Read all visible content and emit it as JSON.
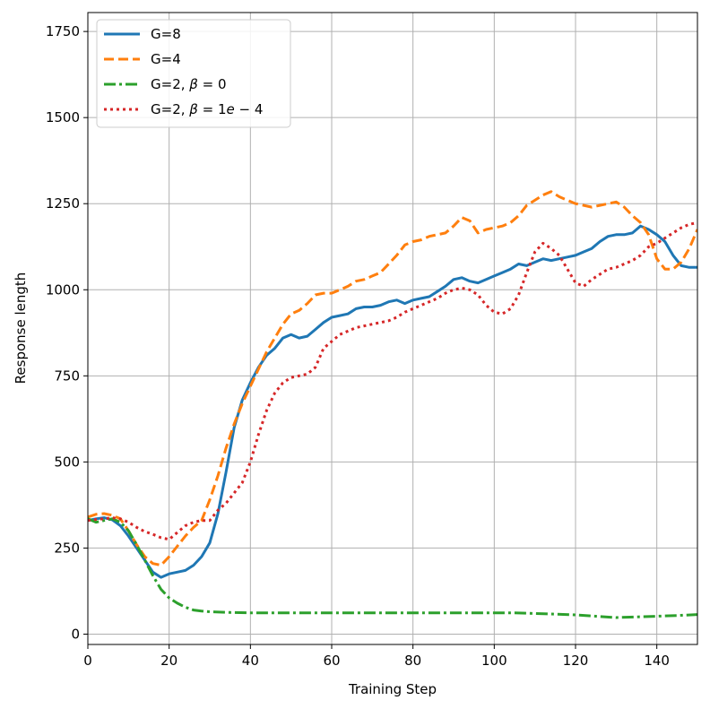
{
  "chart_data": {
    "type": "line",
    "xlabel": "Training Step",
    "ylabel": "Response length",
    "xlim": [
      0,
      150
    ],
    "ylim": [
      -30,
      1805
    ],
    "xticks": [
      0,
      20,
      40,
      60,
      80,
      100,
      120,
      140
    ],
    "yticks": [
      0,
      250,
      500,
      750,
      1000,
      1250,
      1500,
      1750
    ],
    "grid": true,
    "legend_position": "top-left",
    "series": [
      {
        "name": "G=8",
        "legend_parts": [
          "G=8"
        ],
        "color": "#1f77b4",
        "style": "solid",
        "x": [
          0,
          2,
          4,
          6,
          8,
          10,
          12,
          14,
          16,
          18,
          20,
          22,
          24,
          26,
          28,
          30,
          32,
          34,
          36,
          38,
          40,
          42,
          44,
          46,
          48,
          50,
          52,
          54,
          56,
          58,
          60,
          62,
          64,
          66,
          68,
          70,
          72,
          74,
          76,
          78,
          80,
          82,
          84,
          86,
          88,
          90,
          92,
          94,
          96,
          98,
          100,
          102,
          104,
          106,
          108,
          110,
          112,
          114,
          116,
          118,
          120,
          122,
          124,
          126,
          128,
          130,
          132,
          134,
          136,
          138,
          140,
          142,
          144,
          146,
          148,
          150
        ],
        "y": [
          330,
          335,
          338,
          332,
          315,
          285,
          250,
          215,
          180,
          165,
          175,
          180,
          185,
          200,
          225,
          265,
          350,
          470,
          600,
          680,
          730,
          775,
          810,
          830,
          860,
          870,
          860,
          865,
          885,
          905,
          920,
          925,
          930,
          945,
          950,
          950,
          955,
          965,
          970,
          960,
          970,
          975,
          980,
          995,
          1010,
          1030,
          1035,
          1025,
          1020,
          1030,
          1040,
          1050,
          1060,
          1075,
          1070,
          1080,
          1090,
          1085,
          1090,
          1095,
          1100,
          1110,
          1120,
          1140,
          1155,
          1160,
          1160,
          1165,
          1185,
          1175,
          1160,
          1140,
          1100,
          1070,
          1065,
          1065
        ]
      },
      {
        "name": "G=4",
        "legend_parts": [
          "G=4"
        ],
        "color": "#ff7f0e",
        "style": "dashed",
        "x": [
          0,
          2,
          4,
          6,
          8,
          10,
          12,
          14,
          16,
          18,
          20,
          22,
          24,
          26,
          28,
          30,
          32,
          34,
          36,
          38,
          40,
          42,
          44,
          46,
          48,
          50,
          52,
          54,
          56,
          58,
          60,
          62,
          64,
          66,
          68,
          70,
          72,
          74,
          76,
          78,
          80,
          82,
          84,
          86,
          88,
          90,
          92,
          94,
          96,
          98,
          100,
          102,
          104,
          106,
          108,
          110,
          112,
          114,
          116,
          118,
          120,
          122,
          124,
          126,
          128,
          130,
          132,
          134,
          136,
          138,
          140,
          142,
          144,
          146,
          148,
          150
        ],
        "y": [
          340,
          348,
          350,
          345,
          335,
          300,
          260,
          225,
          205,
          200,
          225,
          255,
          285,
          310,
          330,
          390,
          460,
          540,
          610,
          670,
          720,
          770,
          820,
          860,
          900,
          930,
          940,
          960,
          985,
          990,
          990,
          1000,
          1010,
          1025,
          1030,
          1040,
          1050,
          1075,
          1100,
          1130,
          1140,
          1145,
          1155,
          1160,
          1165,
          1185,
          1210,
          1200,
          1165,
          1175,
          1180,
          1185,
          1195,
          1215,
          1245,
          1260,
          1275,
          1285,
          1270,
          1260,
          1250,
          1245,
          1240,
          1245,
          1250,
          1255,
          1240,
          1215,
          1195,
          1160,
          1090,
          1060,
          1060,
          1080,
          1120,
          1175
        ]
      },
      {
        "name": "G=2, β = 0",
        "legend_parts": [
          "G=2, ",
          "β",
          " = 0"
        ],
        "color": "#2ca02c",
        "style": "dashdot",
        "x": [
          0,
          2,
          4,
          6,
          8,
          10,
          12,
          14,
          16,
          18,
          20,
          22,
          24,
          26,
          28,
          30,
          35,
          40,
          45,
          50,
          55,
          60,
          65,
          70,
          75,
          80,
          85,
          90,
          95,
          100,
          105,
          110,
          115,
          120,
          125,
          130,
          135,
          140,
          145,
          150
        ],
        "y": [
          335,
          325,
          330,
          335,
          325,
          300,
          260,
          215,
          170,
          130,
          105,
          90,
          78,
          70,
          67,
          65,
          63,
          62,
          62,
          62,
          62,
          62,
          62,
          62,
          62,
          62,
          62,
          62,
          62,
          62,
          62,
          60,
          58,
          56,
          52,
          48,
          50,
          52,
          54,
          57
        ]
      },
      {
        "name": "G=2, β = 1e − 4",
        "legend_parts": [
          "G=2, ",
          "β",
          " = 1",
          "e",
          " − 4"
        ],
        "color": "#d62728",
        "style": "dotted",
        "x": [
          0,
          2,
          4,
          6,
          8,
          10,
          12,
          14,
          16,
          18,
          20,
          22,
          24,
          26,
          28,
          30,
          32,
          34,
          36,
          38,
          40,
          42,
          44,
          46,
          48,
          50,
          52,
          54,
          56,
          58,
          60,
          62,
          64,
          66,
          68,
          70,
          72,
          74,
          76,
          78,
          80,
          82,
          84,
          86,
          88,
          90,
          92,
          94,
          96,
          98,
          100,
          102,
          104,
          106,
          108,
          110,
          112,
          114,
          116,
          118,
          120,
          122,
          124,
          126,
          128,
          130,
          132,
          134,
          136,
          138,
          140,
          142,
          144,
          146,
          148,
          150
        ],
        "y": [
          330,
          333,
          335,
          338,
          335,
          325,
          310,
          298,
          290,
          280,
          275,
          295,
          315,
          325,
          330,
          330,
          360,
          380,
          410,
          440,
          500,
          580,
          650,
          700,
          730,
          745,
          750,
          755,
          775,
          830,
          850,
          870,
          880,
          890,
          895,
          900,
          905,
          910,
          920,
          935,
          945,
          955,
          965,
          975,
          990,
          1000,
          1005,
          1000,
          985,
          955,
          935,
          930,
          945,
          985,
          1050,
          1110,
          1135,
          1120,
          1100,
          1060,
          1020,
          1010,
          1030,
          1045,
          1060,
          1065,
          1075,
          1085,
          1100,
          1125,
          1135,
          1150,
          1165,
          1180,
          1190,
          1195
        ]
      }
    ]
  }
}
